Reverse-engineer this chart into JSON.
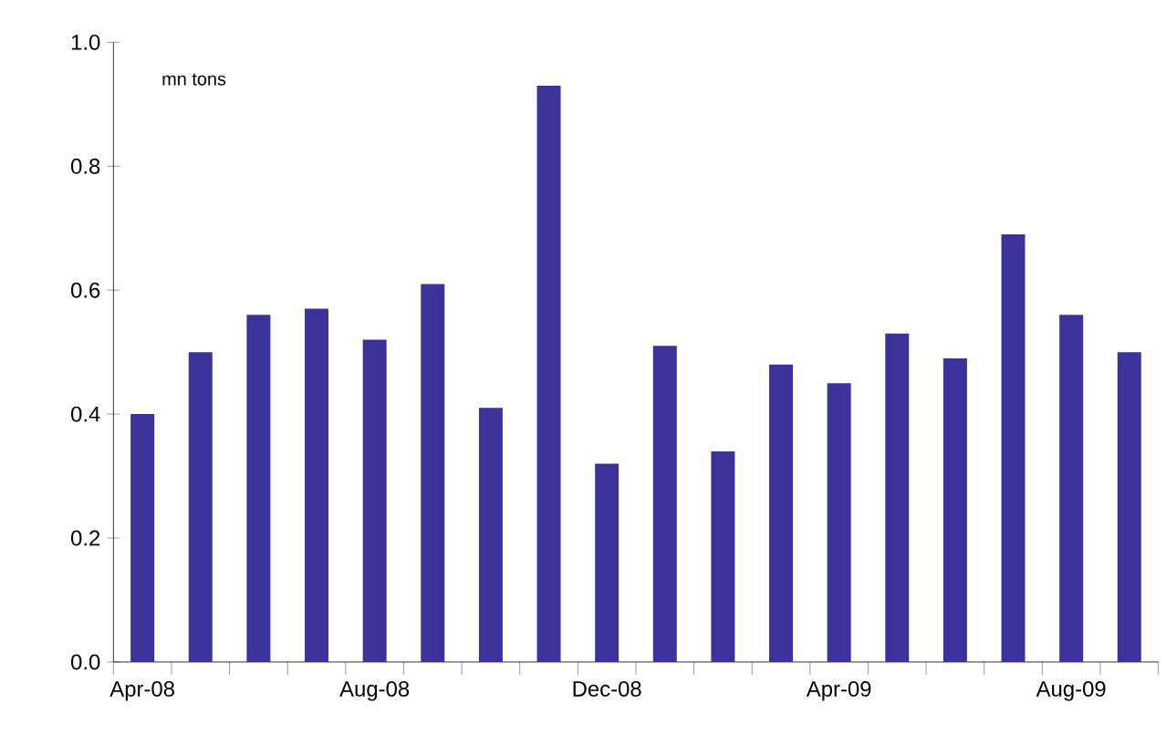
{
  "chart_data": {
    "type": "bar",
    "categories": [
      "Apr-08",
      null,
      null,
      null,
      "Aug-08",
      null,
      null,
      null,
      "Dec-08",
      null,
      null,
      null,
      "Apr-09",
      null,
      null,
      null,
      "Aug-09",
      null
    ],
    "values": [
      0.4,
      0.5,
      0.56,
      0.57,
      0.52,
      0.61,
      0.41,
      0.93,
      0.32,
      0.51,
      0.34,
      0.48,
      0.45,
      0.53,
      0.49,
      0.69,
      0.56,
      0.5
    ],
    "color": "#3b3399",
    "ylim": [
      0,
      1.0
    ],
    "yticks": [
      {
        "value": 0,
        "label": "0.0"
      },
      0.2,
      0.4,
      0.6,
      0.8,
      {
        "value": 1.0,
        "label": "1.0"
      }
    ],
    "annotations": [
      "mn tons"
    ],
    "grid": false
  }
}
